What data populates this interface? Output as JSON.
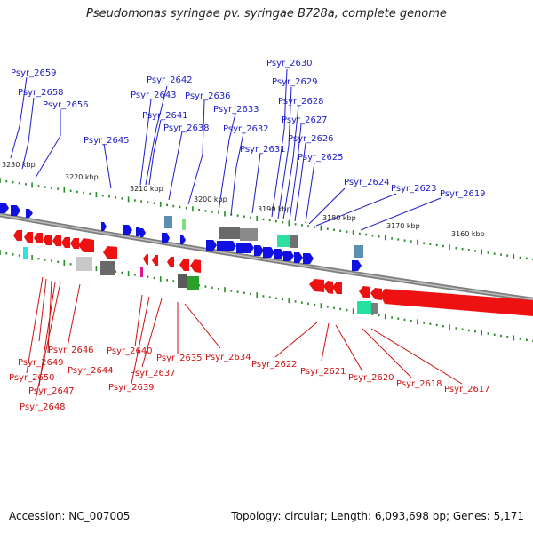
{
  "title": "Pseudomonas syringae pv. syringae B728a, complete genome",
  "footer": {
    "accession": "Accession: NC_007005",
    "topology": "Topology: circular; Length: 6,093,698 bp; Genes: 5,171"
  },
  "colors": {
    "forward": "#1c1cc8",
    "reverse": "#cc1111",
    "backbone": "#8a8a8a",
    "ticks": "#2a8a2a"
  },
  "kbp_labels": [
    "3230 kbp",
    "3220 kbp",
    "3210 kbp",
    "3200 kbp",
    "3190 kbp",
    "3180 kbp",
    "3170 kbp",
    "3160 kbp"
  ],
  "forward_genes": [
    "Psyr_2659",
    "Psyr_2658",
    "Psyr_2656",
    "Psyr_2645",
    "Psyr_2643",
    "Psyr_2642",
    "Psyr_2641",
    "Psyr_2638",
    "Psyr_2636",
    "Psyr_2633",
    "Psyr_2632",
    "Psyr_2631",
    "Psyr_2630",
    "Psyr_2629",
    "Psyr_2628",
    "Psyr_2627",
    "Psyr_2626",
    "Psyr_2625",
    "Psyr_2624",
    "Psyr_2623",
    "Psyr_2619"
  ],
  "reverse_genes": [
    "Psyr_2646",
    "Psyr_2649",
    "Psyr_2650",
    "Psyr_2647",
    "Psyr_2648",
    "Psyr_2644",
    "Psyr_2640",
    "Psyr_2639",
    "Psyr_2637",
    "Psyr_2635",
    "Psyr_2634",
    "Psyr_2622",
    "Psyr_2621",
    "Psyr_2620",
    "Psyr_2618",
    "Psyr_2617"
  ]
}
